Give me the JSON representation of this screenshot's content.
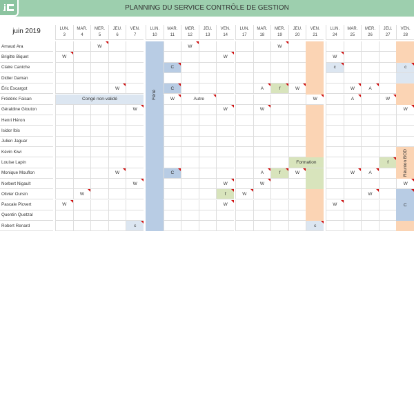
{
  "title": "PLANNING DU SERVICE CONTRÔLE DE GESTION",
  "month": "juin 2019",
  "colors": {
    "header": "#9dcfae",
    "blue": "#b8cce4",
    "lightblue": "#dce6f1",
    "green": "#d8e4bc",
    "orange": "#fbd4b4",
    "flag": "#d01010"
  },
  "weeks": [
    [
      {
        "d": "LUN.",
        "n": "3"
      },
      {
        "d": "MAR.",
        "n": "4"
      },
      {
        "d": "MER.",
        "n": "5"
      },
      {
        "d": "JEU.",
        "n": "6"
      },
      {
        "d": "VEN.",
        "n": "7"
      }
    ],
    [
      {
        "d": "LUN.",
        "n": "10"
      },
      {
        "d": "MAR.",
        "n": "11"
      },
      {
        "d": "MER.",
        "n": "12"
      },
      {
        "d": "JEU.",
        "n": "13"
      },
      {
        "d": "VEN.",
        "n": "14"
      }
    ],
    [
      {
        "d": "LUN.",
        "n": "17"
      },
      {
        "d": "MAR.",
        "n": "18"
      },
      {
        "d": "MER.",
        "n": "19"
      },
      {
        "d": "JEU.",
        "n": "20"
      },
      {
        "d": "VEN.",
        "n": "21"
      }
    ],
    [
      {
        "d": "LUN.",
        "n": "24"
      },
      {
        "d": "MAR.",
        "n": "25"
      },
      {
        "d": "MER.",
        "n": "26"
      },
      {
        "d": "JEU.",
        "n": "27"
      },
      {
        "d": "VEN.",
        "n": "28"
      }
    ]
  ],
  "employees": [
    "Arnaud Ara",
    "Brigitte Biquet",
    "Claire Caniche",
    "Didier Daman",
    "Éric Escargot",
    "Frédéric Faisan",
    "Géraldine Glouton",
    "Henri Héron",
    "Isidor Ibis",
    "Julien Jaguar",
    "Kévin Kiwi",
    "Louise Lapin",
    "Monique Mouflon",
    "Norbert Nigault",
    "Olivier Oursin",
    "Pascale Picvert",
    "Quentin Quetzal",
    "Robert Renard"
  ],
  "fills": [
    {
      "col": 5,
      "r0": 0,
      "r1": 17,
      "fill": "blue",
      "t": "Férié",
      "vert": true
    },
    {
      "col": 14,
      "r0": 0,
      "r1": 4,
      "fill": "orange"
    },
    {
      "col": 14,
      "r0": 6,
      "r1": 10,
      "fill": "orange"
    },
    {
      "col": 14,
      "r0": 12,
      "r1": 13,
      "fill": "green"
    },
    {
      "col": 14,
      "r0": 14,
      "r1": 16,
      "fill": "orange"
    },
    {
      "col": 19,
      "r0": 0,
      "r1": 1,
      "fill": "orange"
    },
    {
      "col": 19,
      "r0": 3,
      "r1": 3,
      "fill": "lightblue"
    },
    {
      "col": 19,
      "r0": 4,
      "r1": 5,
      "fill": "orange"
    },
    {
      "col": 19,
      "r0": 10,
      "r1": 12,
      "fill": "orange",
      "t": "Réunion BOD",
      "vert": true
    },
    {
      "col": 19,
      "r0": 14,
      "r1": 16,
      "fill": "blue",
      "t": "C",
      "flag": true
    },
    {
      "col": 19,
      "r0": 17,
      "r1": 17,
      "fill": "orange"
    }
  ],
  "cells": [
    {
      "r": 0,
      "c": 2,
      "t": "W"
    },
    {
      "r": 0,
      "c": 7,
      "t": "W"
    },
    {
      "r": 0,
      "c": 12,
      "t": "W"
    },
    {
      "r": 1,
      "c": 0,
      "t": "W"
    },
    {
      "r": 1,
      "c": 9,
      "t": "W"
    },
    {
      "r": 1,
      "c": 15,
      "t": "W"
    },
    {
      "r": 2,
      "c": 6,
      "t": "C",
      "fill": "blue"
    },
    {
      "r": 2,
      "c": 15,
      "t": "c",
      "fill": "lightblue"
    },
    {
      "r": 2,
      "c": 19,
      "t": "c",
      "fill": "lightblue"
    },
    {
      "r": 4,
      "c": 3,
      "t": "W"
    },
    {
      "r": 4,
      "c": 6,
      "t": "C",
      "fill": "blue"
    },
    {
      "r": 4,
      "c": 11,
      "t": "A"
    },
    {
      "r": 4,
      "c": 12,
      "t": "f",
      "fill": "green"
    },
    {
      "r": 4,
      "c": 13,
      "t": "W"
    },
    {
      "r": 4,
      "c": 16,
      "t": "W"
    },
    {
      "r": 4,
      "c": 17,
      "t": "A"
    },
    {
      "r": 5,
      "c": 0,
      "span": 5,
      "t": "Congé non-validé",
      "fill": "lightblue",
      "noflag": true
    },
    {
      "r": 5,
      "c": 6,
      "t": "W"
    },
    {
      "r": 5,
      "c": 7,
      "span": 2,
      "t": "Autre"
    },
    {
      "r": 5,
      "c": 14,
      "t": "W"
    },
    {
      "r": 5,
      "c": 16,
      "t": "A"
    },
    {
      "r": 5,
      "c": 18,
      "t": "W"
    },
    {
      "r": 6,
      "c": 4,
      "t": "W"
    },
    {
      "r": 6,
      "c": 9,
      "t": "W"
    },
    {
      "r": 6,
      "c": 11,
      "t": "W"
    },
    {
      "r": 6,
      "c": 19,
      "t": "W"
    },
    {
      "r": 11,
      "c": 13,
      "span": 2,
      "t": "Formation",
      "fill": "green",
      "noflag": true
    },
    {
      "r": 11,
      "c": 18,
      "t": "f",
      "fill": "green"
    },
    {
      "r": 12,
      "c": 3,
      "t": "W"
    },
    {
      "r": 12,
      "c": 6,
      "t": "C",
      "fill": "blue"
    },
    {
      "r": 12,
      "c": 11,
      "t": "A"
    },
    {
      "r": 12,
      "c": 12,
      "t": "f",
      "fill": "green"
    },
    {
      "r": 12,
      "c": 13,
      "t": "W"
    },
    {
      "r": 12,
      "c": 16,
      "t": "W"
    },
    {
      "r": 12,
      "c": 17,
      "t": "A"
    },
    {
      "r": 13,
      "c": 4,
      "t": "W"
    },
    {
      "r": 13,
      "c": 9,
      "t": "W"
    },
    {
      "r": 13,
      "c": 11,
      "t": "W"
    },
    {
      "r": 13,
      "c": 19,
      "t": "W"
    },
    {
      "r": 14,
      "c": 1,
      "t": "W"
    },
    {
      "r": 14,
      "c": 9,
      "t": "f",
      "fill": "green"
    },
    {
      "r": 14,
      "c": 10,
      "t": "W"
    },
    {
      "r": 14,
      "c": 17,
      "t": "W"
    },
    {
      "r": 15,
      "c": 0,
      "t": "W"
    },
    {
      "r": 15,
      "c": 9,
      "t": "W"
    },
    {
      "r": 15,
      "c": 15,
      "t": "W"
    },
    {
      "r": 17,
      "c": 4,
      "t": "c",
      "fill": "lightblue"
    },
    {
      "r": 17,
      "c": 14,
      "t": "c",
      "fill": "lightblue"
    }
  ]
}
